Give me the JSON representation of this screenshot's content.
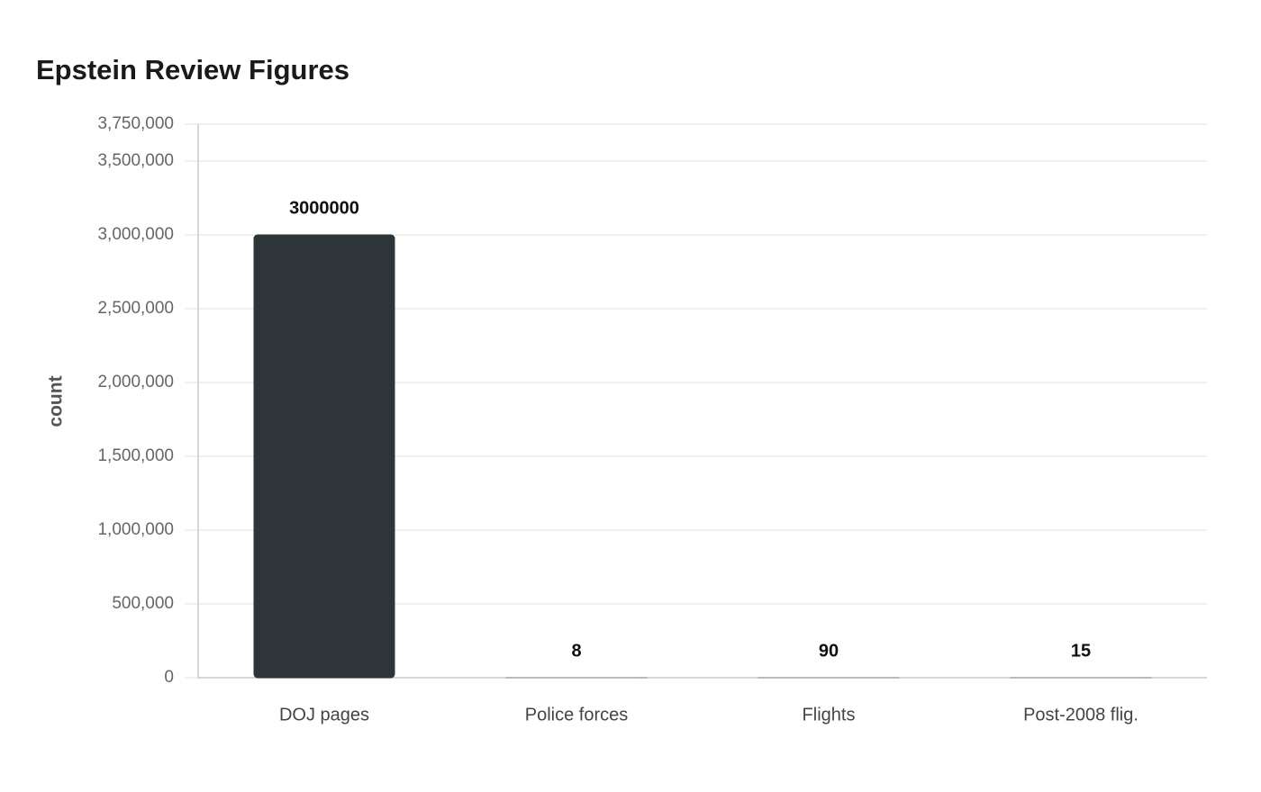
{
  "chart_data": {
    "type": "bar",
    "title": "Epstein Review Figures",
    "y_label": "count",
    "categories": [
      "DOJ pages",
      "Police forces",
      "Flights",
      "Post-2008 flig."
    ],
    "values": [
      3000000,
      8,
      90,
      15
    ],
    "colors": [
      "#2e3538",
      "#8d9aa1",
      "#8d9aa1",
      "#8d9aa1"
    ],
    "ylim": [
      0,
      3750000
    ],
    "yticks": [
      0,
      {
        "value": 500000,
        "label": "500,000"
      },
      {
        "value": 1000000,
        "label": "1,000,000"
      },
      {
        "value": 1500000,
        "label": "1,500,000"
      },
      {
        "value": 2000000,
        "label": "2,000,000"
      },
      {
        "value": 2500000,
        "label": "2,500,000"
      },
      {
        "value": 3000000,
        "label": "3,000,000"
      },
      {
        "value": 3500000,
        "label": "3,500,000"
      },
      {
        "value": 3750000,
        "label": "3,750,000"
      }
    ],
    "grid": true
  }
}
